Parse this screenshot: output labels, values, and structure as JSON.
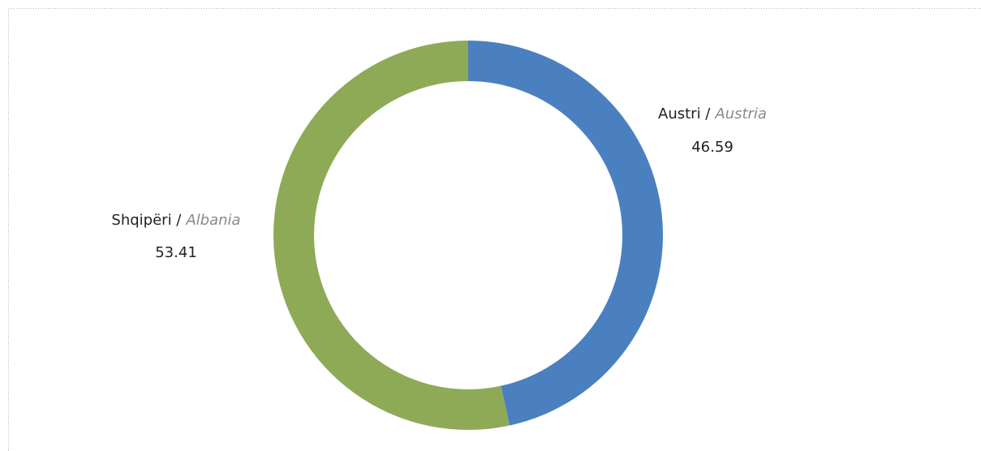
{
  "chart_data": {
    "type": "donut",
    "categories": [
      {
        "local": "Austri /",
        "english": "Austria"
      },
      {
        "local": "Shqipëri /",
        "english": "Albania"
      }
    ],
    "values": [
      46.59,
      53.41
    ],
    "colors": [
      "#4a80bf",
      "#8eaa57"
    ]
  }
}
